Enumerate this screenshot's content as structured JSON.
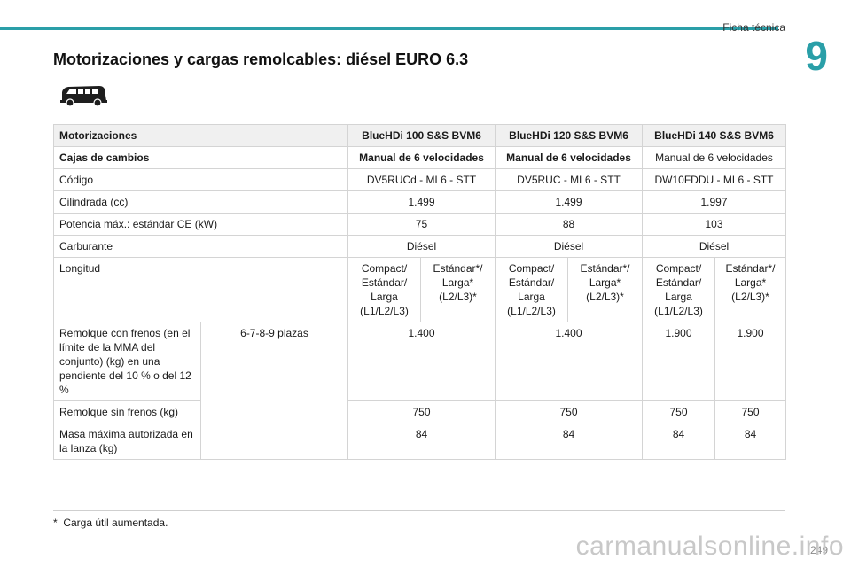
{
  "header": {
    "section": "Ficha técnica",
    "chapter": "9",
    "title": "Motorizaciones y cargas remolcables: diésel EURO 6.3",
    "accent_color": "#2a9fa8"
  },
  "icon": "van-icon",
  "table": {
    "header_row": {
      "label": "Motorizaciones",
      "engines": [
        "BlueHDi 100 S&S BVM6",
        "BlueHDi 120 S&S BVM6",
        "BlueHDi 140 S&S BVM6"
      ]
    },
    "gearbox": {
      "label": "Cajas de cambios",
      "values": [
        "Manual de 6 velocidades",
        "Manual de 6 velocidades",
        "Manual de 6 velocidades"
      ]
    },
    "code": {
      "label": "Código",
      "values": [
        "DV5RUCd - ML6 - STT",
        "DV5RUC - ML6 - STT",
        "DW10FDDU - ML6 - STT"
      ]
    },
    "displacement": {
      "label": "Cilindrada (cc)",
      "values": [
        "1.499",
        "1.499",
        "1.997"
      ]
    },
    "power": {
      "label": "Potencia máx.: estándar CE (kW)",
      "values": [
        "75",
        "88",
        "103"
      ]
    },
    "fuel": {
      "label": "Carburante",
      "values": [
        "Diésel",
        "Diésel",
        "Diésel"
      ]
    },
    "length": {
      "label": "Longitud",
      "values": [
        "Compact/ Estándar/ Larga (L1/L2/L3)",
        "Estándar*/ Larga* (L2/L3)*",
        "Compact/ Estándar/ Larga (L1/L2/L3)",
        "Estándar*/ Larga* (L2/L3)*",
        "Compact/ Estándar/ Larga (L1/L2/L3)",
        "Estándar*/ Larga* (L2/L3)*"
      ]
    },
    "braked_trailer": {
      "label": "Remolque con frenos (en el límite de la MMA del conjunto) (kg) en una pendiente del 10 % o del 12 %",
      "seats": "6-7-8-9 plazas",
      "values": [
        "1.400",
        "1.400",
        "1.900",
        "1.900"
      ]
    },
    "unbraked_trailer": {
      "label": "Remolque sin frenos (kg)",
      "values": [
        "750",
        "750",
        "750",
        "750"
      ]
    },
    "drawbar_mass": {
      "label": "Masa máxima autorizada en la lanza (kg)",
      "values": [
        "84",
        "84",
        "84",
        "84"
      ]
    }
  },
  "footnote": {
    "marker": "*",
    "text": "Carga útil aumentada."
  },
  "page_number": "249",
  "watermark": "carmanualsonline.info"
}
